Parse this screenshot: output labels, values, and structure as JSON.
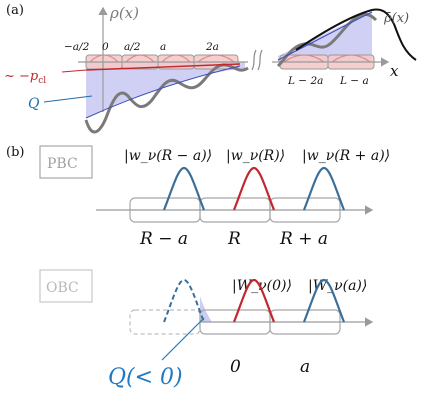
{
  "panel_a": {
    "panel_label": "(a)",
    "rho_label": "ρ(x)",
    "rho_bar_label": "ρ̄(x)",
    "x_axis_label": "x",
    "ticks_left": [
      "−a/2",
      "0",
      "a/2",
      "a",
      "2a"
    ],
    "ticks_right": [
      "L − 2a",
      "L − a"
    ],
    "p_cl_label": "~ −p",
    "p_cl_sub": "cl",
    "Q_label": "Q",
    "colors": {
      "rho_curve": "#7a7a7a",
      "rho_bar": "#111111",
      "Q_fill": "#c8c8f2",
      "cell_fill": "#f4c9c9",
      "red": "#c2272d",
      "blue": "#1f6fa9",
      "cell_box": "#9a9a9a"
    }
  },
  "panel_b": {
    "panel_label": "(b)",
    "pbc": {
      "box_label": "PBC",
      "ket_labels": [
        "|w_ν(R − a)⟩",
        "|w_ν(R)⟩",
        "|w_ν(R + a)⟩"
      ],
      "site_labels": [
        "R − a",
        "R",
        "R + a"
      ]
    },
    "obc": {
      "box_label": "OBC",
      "ket_labels": [
        "|W_ν(0)⟩",
        "|W_ν(a)⟩"
      ],
      "site_labels": [
        "0",
        "a"
      ],
      "charge_label": "Q(< 0)"
    },
    "colors": {
      "red": "#c2272d",
      "blue": "#3a6f9a",
      "box_stroke": "#a8a8a8",
      "axis": "#9a9a9a",
      "charge_text": "#1f7ac2"
    }
  }
}
